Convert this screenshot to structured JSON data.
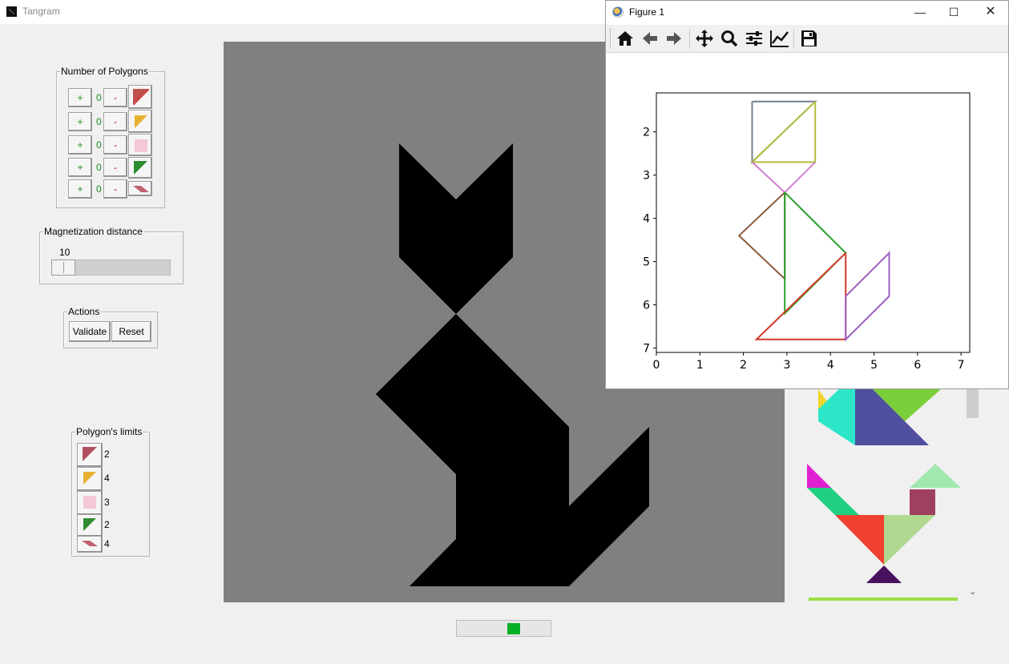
{
  "main_window": {
    "title": "Tangram"
  },
  "number_of_polygons": {
    "legend": "Number of Polygons",
    "rows": [
      {
        "plus": "+",
        "count": "0",
        "minus": "-",
        "shape_icon": "large-triangle-icon",
        "color": "#c0504d"
      },
      {
        "plus": "+",
        "count": "0",
        "minus": "-",
        "shape_icon": "medium-triangle-icon",
        "color": "#e8b030"
      },
      {
        "plus": "+",
        "count": "0",
        "minus": "-",
        "shape_icon": "square-icon",
        "color": "#f4c8d4"
      },
      {
        "plus": "+",
        "count": "0",
        "minus": "-",
        "shape_icon": "small-triangle-icon",
        "color": "#2e8b2e"
      },
      {
        "plus": "+",
        "count": "0",
        "minus": "-",
        "shape_icon": "parallelogram-icon",
        "color": "#c06070"
      }
    ]
  },
  "magnetization": {
    "legend": "Magnetization distance",
    "value": "10"
  },
  "actions": {
    "legend": "Actions",
    "validate": "Validate",
    "reset": "Reset"
  },
  "polygon_limits": {
    "legend": "Polygon's limits",
    "rows": [
      {
        "shape_icon": "large-triangle-icon",
        "limit": "2"
      },
      {
        "shape_icon": "medium-triangle-icon",
        "limit": "4"
      },
      {
        "shape_icon": "square-icon",
        "limit": "3"
      },
      {
        "shape_icon": "small-triangle-icon",
        "limit": "2"
      },
      {
        "shape_icon": "parallelogram-icon",
        "limit": "4"
      }
    ]
  },
  "target_shape": {
    "color": "#000000",
    "background": "#808080"
  },
  "progress": {
    "fraction": 0.15
  },
  "figure_window": {
    "title": "Figure 1",
    "toolbar": [
      "home-icon",
      "back-icon",
      "forward-icon",
      "pan-icon",
      "zoom-icon",
      "configure-subplots-icon",
      "edit-axis-icon",
      "save-icon"
    ]
  },
  "chart_data": {
    "type": "line",
    "title": "",
    "xlabel": "",
    "ylabel": "",
    "xlim": [
      0,
      7.2
    ],
    "ylim": [
      7.1,
      1.1
    ],
    "y_inverted": true,
    "grid": false,
    "xticks": [
      "0",
      "1",
      "2",
      "3",
      "4",
      "5",
      "6",
      "7"
    ],
    "yticks": [
      "2",
      "3",
      "4",
      "5",
      "6",
      "7"
    ],
    "series": [
      {
        "color": "#708090",
        "x": [
          2.2,
          2.2,
          3.65,
          2.2
        ],
        "y": [
          1.3,
          2.7,
          1.3,
          1.3
        ]
      },
      {
        "color": "#b5bd3a",
        "x": [
          3.65,
          3.65,
          2.2,
          3.65
        ],
        "y": [
          1.3,
          2.7,
          2.7,
          1.3
        ]
      },
      {
        "color": "#d080d0",
        "x": [
          2.2,
          2.95,
          3.65
        ],
        "y": [
          2.7,
          3.4,
          2.7
        ]
      },
      {
        "color": "#8b5a3c",
        "x": [
          2.95,
          1.9,
          2.95,
          2.95
        ],
        "y": [
          3.4,
          4.4,
          5.4,
          3.4
        ]
      },
      {
        "color": "#2ca02c",
        "x": [
          2.95,
          4.35,
          2.95,
          2.95
        ],
        "y": [
          3.4,
          4.8,
          6.2,
          3.4
        ]
      },
      {
        "color": "#d03a2a",
        "x": [
          4.35,
          4.35,
          2.3,
          4.35
        ],
        "y": [
          4.8,
          6.8,
          6.8,
          4.8
        ]
      },
      {
        "color": "#9a60c0",
        "x": [
          4.35,
          5.35,
          5.35,
          4.35,
          4.35
        ],
        "y": [
          5.8,
          4.8,
          5.8,
          6.8,
          5.8
        ]
      }
    ]
  },
  "gallery": {
    "colors": [
      "#f2d52a",
      "#2de6c8",
      "#7bcf3a",
      "#4f4fa0",
      "#e020d0",
      "#20d080",
      "#f04030",
      "#b0d890",
      "#a04060",
      "#a0e8b0",
      "#4a1060",
      "#98e040"
    ]
  }
}
